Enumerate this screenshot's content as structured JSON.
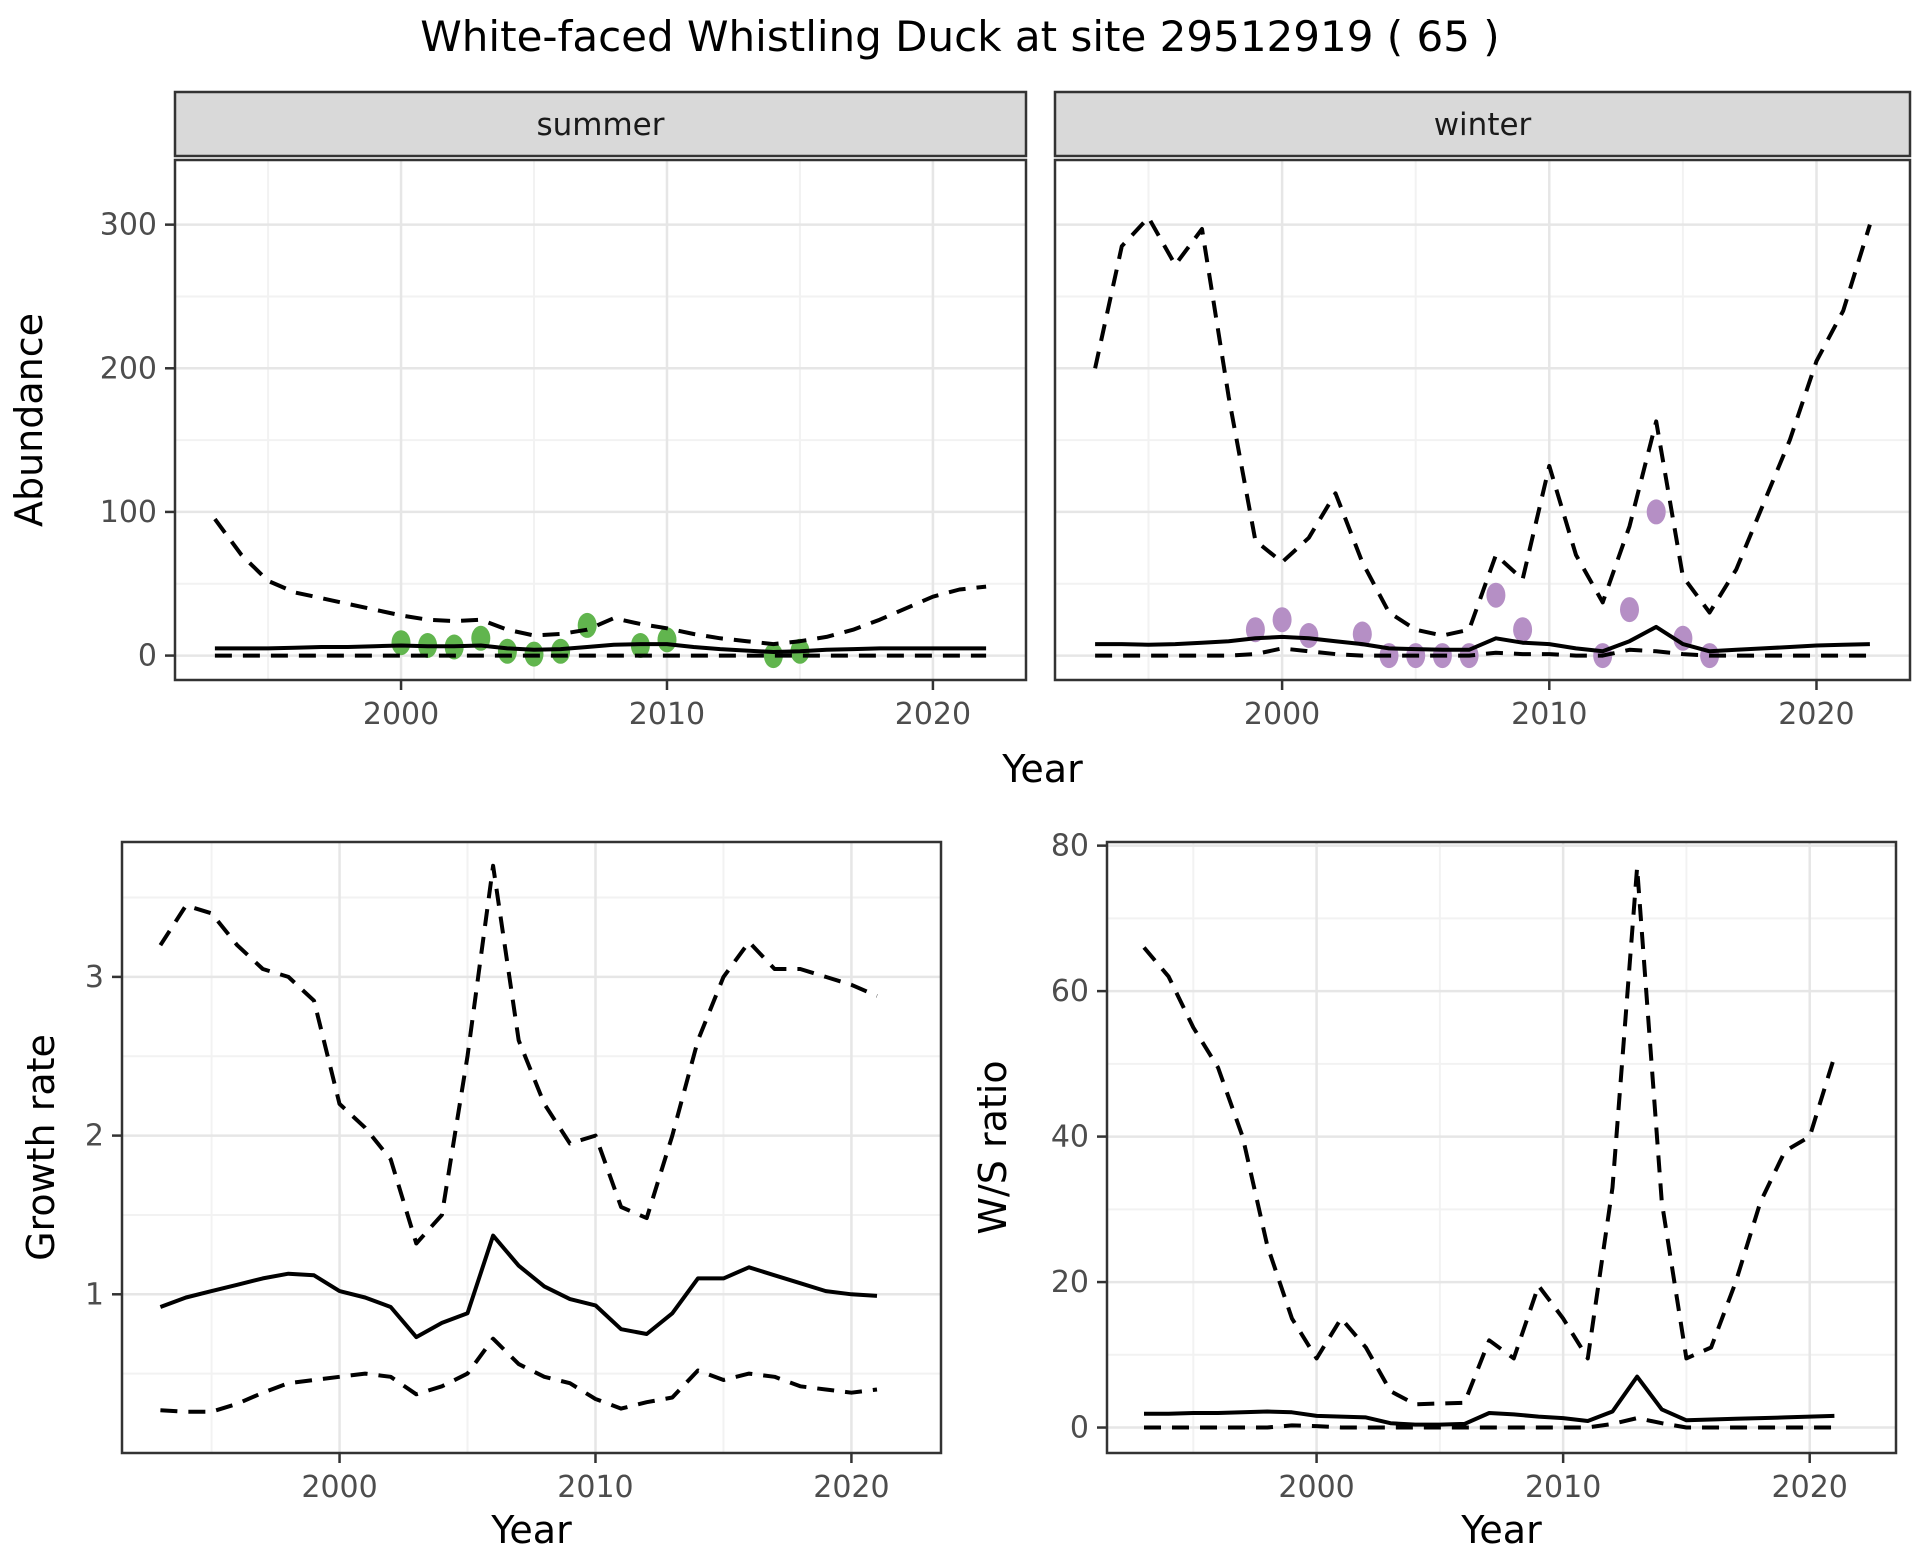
{
  "title": "White-faced Whistling Duck at site 29512919 ( 65 )",
  "colors": {
    "background": "#ffffff",
    "line": "#000000",
    "panel_border": "#333333",
    "strip_bg": "#d9d9d9",
    "grid_major": "#e6e6e6",
    "grid_minor": "#f2f2f2",
    "tick_label": "#4d4d4d",
    "axis_title": "#000000",
    "summer_point": "#61b54e",
    "winter_point": "#b58fc5"
  },
  "chart_data": [
    {
      "type": "line",
      "name": "abundance-facets",
      "xlabel": "Year",
      "ylabel": "Abundance",
      "xlim": [
        1991.5,
        2023.5
      ],
      "ylim": [
        -17,
        345
      ],
      "xticks": [
        2000,
        2010,
        2020
      ],
      "xminor": [
        1995,
        2005,
        2015
      ],
      "yticks": [
        0,
        100,
        200,
        300
      ],
      "yminor": [
        50,
        150,
        250
      ],
      "grid": true,
      "legend_position": "none",
      "years": [
        1993,
        1994,
        1995,
        1996,
        1997,
        1998,
        1999,
        2000,
        2001,
        2002,
        2003,
        2004,
        2005,
        2006,
        2007,
        2008,
        2009,
        2010,
        2011,
        2012,
        2013,
        2014,
        2015,
        2016,
        2017,
        2018,
        2019,
        2020,
        2021,
        2022
      ],
      "facets": [
        {
          "label": "summer",
          "point_color_key": "summer_point",
          "median": [
            5,
            5,
            5,
            5.5,
            6,
            6,
            6.5,
            7,
            6.5,
            6.5,
            7,
            5,
            4,
            4.5,
            6,
            7.5,
            8,
            8,
            6,
            4.5,
            3.5,
            2.5,
            3,
            4,
            4.5,
            5,
            5,
            5,
            5,
            5
          ],
          "upper": [
            95,
            70,
            52,
            44,
            40,
            36,
            32,
            28,
            25,
            24,
            25,
            18,
            14,
            15,
            18,
            26,
            22,
            19,
            15,
            12,
            10,
            8,
            10,
            13,
            18,
            25,
            33,
            41,
            46,
            48
          ],
          "lower": [
            0,
            0,
            0,
            0,
            0,
            0,
            0,
            0,
            0,
            0,
            0,
            0,
            0,
            0,
            0,
            0,
            0,
            0,
            0,
            0,
            0,
            0,
            0,
            0,
            0,
            0,
            0,
            0,
            0,
            0
          ],
          "observations": [
            [
              2000,
              9
            ],
            [
              2001,
              7
            ],
            [
              2002,
              6
            ],
            [
              2003,
              12
            ],
            [
              2004,
              3
            ],
            [
              2005,
              1
            ],
            [
              2006,
              3
            ],
            [
              2007,
              21
            ],
            [
              2009,
              7
            ],
            [
              2010,
              11
            ],
            [
              2014,
              0
            ],
            [
              2015,
              3
            ]
          ]
        },
        {
          "label": "winter",
          "point_color_key": "winter_point",
          "median": [
            8,
            8,
            7.5,
            8,
            9,
            10,
            12,
            13,
            12,
            10,
            8,
            5,
            4.5,
            4,
            4,
            12,
            9,
            8,
            5,
            3,
            10,
            20,
            8,
            3,
            4,
            5,
            6,
            7,
            7.5,
            8
          ],
          "upper": [
            200,
            285,
            305,
            272,
            297,
            180,
            80,
            65,
            82,
            113,
            65,
            30,
            18,
            14,
            18,
            70,
            53,
            132,
            70,
            37,
            90,
            163,
            55,
            30,
            60,
            105,
            150,
            205,
            240,
            300
          ],
          "lower": [
            0,
            0,
            0,
            0,
            0,
            0,
            1,
            5,
            3,
            1,
            0,
            0,
            0,
            0,
            0,
            2,
            1,
            1,
            0,
            0,
            4,
            3,
            1,
            0,
            0,
            0,
            0,
            0,
            0,
            0
          ],
          "observations": [
            [
              1999,
              18
            ],
            [
              2000,
              25
            ],
            [
              2001,
              14
            ],
            [
              2003,
              15
            ],
            [
              2004,
              0
            ],
            [
              2005,
              0
            ],
            [
              2006,
              0
            ],
            [
              2007,
              0
            ],
            [
              2008,
              42
            ],
            [
              2009,
              18
            ],
            [
              2012,
              0
            ],
            [
              2013,
              32
            ],
            [
              2014,
              100
            ],
            [
              2015,
              12
            ],
            [
              2016,
              0
            ]
          ]
        }
      ]
    },
    {
      "type": "line",
      "name": "growth-rate",
      "xlabel": "Year",
      "ylabel": "Growth rate",
      "xlim": [
        1991.5,
        2023.5
      ],
      "ylim": [
        0,
        3.85
      ],
      "xticks": [
        2000,
        2010,
        2020
      ],
      "xminor": [
        1995,
        2005,
        2015
      ],
      "yticks": [
        1,
        2,
        3
      ],
      "yminor": [
        0.5,
        1.5,
        2.5,
        3.5
      ],
      "grid": true,
      "legend_position": "none",
      "years": [
        1993,
        1994,
        1995,
        1996,
        1997,
        1998,
        1999,
        2000,
        2001,
        2002,
        2003,
        2004,
        2005,
        2006,
        2007,
        2008,
        2009,
        2010,
        2011,
        2012,
        2013,
        2014,
        2015,
        2016,
        2017,
        2018,
        2019,
        2020,
        2021
      ],
      "median": [
        0.92,
        0.98,
        1.02,
        1.06,
        1.1,
        1.13,
        1.12,
        1.02,
        0.98,
        0.92,
        0.73,
        0.82,
        0.88,
        1.37,
        1.18,
        1.05,
        0.97,
        0.93,
        0.78,
        0.75,
        0.88,
        1.1,
        1.1,
        1.17,
        1.12,
        1.07,
        1.02,
        1.0,
        0.99
      ],
      "upper": [
        3.2,
        3.45,
        3.4,
        3.2,
        3.05,
        3.0,
        2.85,
        2.2,
        2.05,
        1.85,
        1.32,
        1.5,
        2.5,
        3.7,
        2.6,
        2.2,
        1.95,
        2.0,
        1.55,
        1.48,
        2.0,
        2.6,
        3.0,
        3.22,
        3.05,
        3.05,
        3.0,
        2.95,
        2.88
      ],
      "lower": [
        0.27,
        0.26,
        0.26,
        0.31,
        0.38,
        0.44,
        0.46,
        0.48,
        0.5,
        0.48,
        0.37,
        0.42,
        0.5,
        0.72,
        0.56,
        0.48,
        0.44,
        0.34,
        0.28,
        0.32,
        0.35,
        0.52,
        0.46,
        0.5,
        0.48,
        0.42,
        0.4,
        0.38,
        0.4
      ]
    },
    {
      "type": "line",
      "name": "ws-ratio",
      "xlabel": "Year",
      "ylabel": "W/S ratio",
      "xlim": [
        1991.5,
        2023.5
      ],
      "ylim": [
        -3.5,
        80.5
      ],
      "xticks": [
        2000,
        2010,
        2020
      ],
      "xminor": [
        1995,
        2005,
        2015
      ],
      "yticks": [
        0,
        20,
        40,
        60,
        80
      ],
      "yminor": [
        10,
        30,
        50,
        70
      ],
      "grid": true,
      "legend_position": "none",
      "years": [
        1993,
        1994,
        1995,
        1996,
        1997,
        1998,
        1999,
        2000,
        2001,
        2002,
        2003,
        2004,
        2005,
        2006,
        2007,
        2008,
        2009,
        2010,
        2011,
        2012,
        2013,
        2014,
        2015,
        2016,
        2017,
        2018,
        2019,
        2020,
        2021
      ],
      "median": [
        1.9,
        1.9,
        2.0,
        2.0,
        2.1,
        2.2,
        2.1,
        1.6,
        1.5,
        1.4,
        0.6,
        0.4,
        0.4,
        0.5,
        2.0,
        1.8,
        1.5,
        1.3,
        0.9,
        2.2,
        7.0,
        2.5,
        1.0,
        1.1,
        1.2,
        1.3,
        1.4,
        1.5,
        1.6
      ],
      "upper": [
        66,
        62,
        55,
        49.5,
        40,
        25,
        15,
        9.5,
        15,
        11,
        5,
        3.2,
        3.3,
        3.4,
        12,
        9.5,
        19.5,
        15,
        9.5,
        33,
        77,
        31,
        9.5,
        11,
        20,
        31,
        38,
        40,
        51
      ],
      "lower": [
        0,
        0,
        0,
        0,
        0,
        0,
        0.3,
        0.2,
        0,
        0,
        0,
        0,
        0,
        0,
        0,
        0,
        0,
        0,
        0,
        0.5,
        1.3,
        0.6,
        0,
        0,
        0,
        0,
        0,
        0,
        0
      ]
    }
  ]
}
